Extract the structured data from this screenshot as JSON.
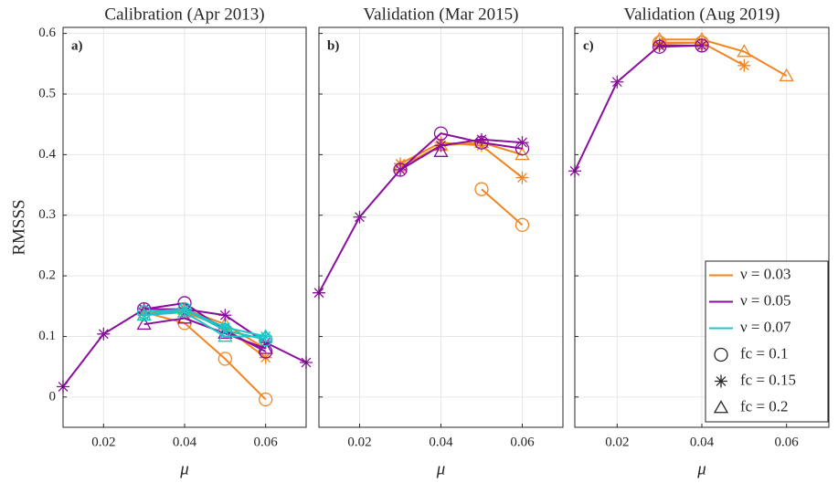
{
  "chart_data": [
    {
      "type": "line",
      "title": "Calibration (Apr 2013)",
      "panel_label": "a)",
      "xlabel": "μ",
      "ylabel": "RMSSS",
      "xlim": [
        0.01,
        0.07
      ],
      "ylim": [
        -0.05,
        0.61
      ],
      "xticks": [
        0.02,
        0.04,
        0.06
      ],
      "yticks": [
        0,
        0.1,
        0.2,
        0.3,
        0.4,
        0.5,
        0.6
      ],
      "ytick_labels": true,
      "grid": true,
      "series": [
        {
          "color": "#f28522",
          "marker": "circle",
          "x": [
            0.03,
            0.04,
            0.05,
            0.06
          ],
          "values": [
            0.14,
            0.122,
            0.063,
            -0.004
          ]
        },
        {
          "color": "#f28522",
          "marker": "star",
          "x": [
            0.03,
            0.04,
            0.05,
            0.06
          ],
          "values": [
            0.14,
            0.14,
            0.115,
            0.065
          ]
        },
        {
          "color": "#f28522",
          "marker": "triangle",
          "x": [
            0.03,
            0.04,
            0.05,
            0.06
          ],
          "values": [
            0.135,
            0.145,
            0.12,
            0.08
          ]
        },
        {
          "color": "#8b0f9e",
          "marker": "star",
          "x": [
            0.01,
            0.02,
            0.03,
            0.04,
            0.05,
            0.06,
            0.07
          ],
          "values": [
            0.017,
            0.104,
            0.145,
            0.145,
            0.135,
            0.09,
            0.057
          ]
        },
        {
          "color": "#8b0f9e",
          "marker": "circle",
          "x": [
            0.03,
            0.04,
            0.05,
            0.06
          ],
          "values": [
            0.145,
            0.155,
            0.11,
            0.075
          ]
        },
        {
          "color": "#8b0f9e",
          "marker": "triangle",
          "x": [
            0.03,
            0.04,
            0.05,
            0.06
          ],
          "values": [
            0.12,
            0.13,
            0.105,
            0.08
          ]
        },
        {
          "color": "#1fc4c4",
          "marker": "circle",
          "x": [
            0.03,
            0.04,
            0.05,
            0.06
          ],
          "values": [
            0.14,
            0.145,
            0.11,
            0.095
          ]
        },
        {
          "color": "#1fc4c4",
          "marker": "star",
          "x": [
            0.03,
            0.04,
            0.05,
            0.06
          ],
          "values": [
            0.135,
            0.145,
            0.115,
            0.1
          ]
        },
        {
          "color": "#1fc4c4",
          "marker": "triangle",
          "x": [
            0.03,
            0.04,
            0.05,
            0.06
          ],
          "values": [
            0.135,
            0.14,
            0.1,
            0.1
          ]
        }
      ]
    },
    {
      "type": "line",
      "title": "Validation (Mar 2015)",
      "panel_label": "b)",
      "xlabel": "μ",
      "xlim": [
        0.01,
        0.07
      ],
      "ylim": [
        -0.05,
        0.61
      ],
      "xticks": [
        0.02,
        0.04,
        0.06
      ],
      "yticks": [
        0,
        0.1,
        0.2,
        0.3,
        0.4,
        0.5,
        0.6
      ],
      "ytick_labels": false,
      "grid": true,
      "series": [
        {
          "color": "#f28522",
          "marker": "circle",
          "x": [
            0.05,
            0.06
          ],
          "values": [
            0.343,
            0.284
          ]
        },
        {
          "color": "#f28522",
          "marker": "star",
          "x": [
            0.03,
            0.04,
            0.05,
            0.06
          ],
          "values": [
            0.385,
            0.42,
            0.415,
            0.362
          ]
        },
        {
          "color": "#f28522",
          "marker": "triangle",
          "x": [
            0.03,
            0.04,
            0.05,
            0.06
          ],
          "values": [
            0.38,
            0.415,
            0.42,
            0.4
          ]
        },
        {
          "color": "#8b0f9e",
          "marker": "star",
          "x": [
            0.01,
            0.02,
            0.03,
            0.04,
            0.05,
            0.06
          ],
          "values": [
            0.172,
            0.297,
            0.375,
            0.415,
            0.425,
            0.42
          ]
        },
        {
          "color": "#8b0f9e",
          "marker": "circle",
          "x": [
            0.03,
            0.04,
            0.05,
            0.06
          ],
          "values": [
            0.375,
            0.435,
            0.42,
            0.41
          ]
        },
        {
          "color": "#8b0f9e",
          "marker": "triangle",
          "x": [
            0.04
          ],
          "values": [
            0.405
          ]
        }
      ]
    },
    {
      "type": "line",
      "title": "Validation (Aug 2019)",
      "panel_label": "c)",
      "xlabel": "μ",
      "xlim": [
        0.01,
        0.07
      ],
      "ylim": [
        -0.05,
        0.61
      ],
      "xticks": [
        0.02,
        0.04,
        0.06
      ],
      "yticks": [
        0,
        0.1,
        0.2,
        0.3,
        0.4,
        0.5,
        0.6
      ],
      "ytick_labels": false,
      "grid": true,
      "series": [
        {
          "color": "#f28522",
          "marker": "triangle",
          "x": [
            0.03,
            0.04,
            0.05,
            0.06
          ],
          "values": [
            0.59,
            0.59,
            0.57,
            0.53
          ]
        },
        {
          "color": "#f28522",
          "marker": "star",
          "x": [
            0.03,
            0.04,
            0.05
          ],
          "values": [
            0.583,
            0.585,
            0.547
          ]
        },
        {
          "color": "#f28522",
          "marker": "circle",
          "x": [
            0.03,
            0.04
          ],
          "values": [
            0.585,
            0.585
          ]
        },
        {
          "color": "#8b0f9e",
          "marker": "star",
          "x": [
            0.01,
            0.02,
            0.03,
            0.04
          ],
          "values": [
            0.373,
            0.52,
            0.58,
            0.58
          ]
        },
        {
          "color": "#8b0f9e",
          "marker": "circle",
          "x": [
            0.03,
            0.04
          ],
          "values": [
            0.578,
            0.58
          ]
        }
      ],
      "legend": {
        "loc": "lower right",
        "entries": [
          {
            "label": "ν = 0.03",
            "color": "#f28522"
          },
          {
            "label": "ν = 0.05",
            "color": "#8b0f9e"
          },
          {
            "label": "ν = 0.07",
            "color": "#1fc4c4"
          },
          {
            "label": "fc = 0.1",
            "marker": "circle"
          },
          {
            "label": "fc = 0.15",
            "marker": "star"
          },
          {
            "label": "fc = 0.2",
            "marker": "triangle"
          }
        ]
      }
    }
  ]
}
